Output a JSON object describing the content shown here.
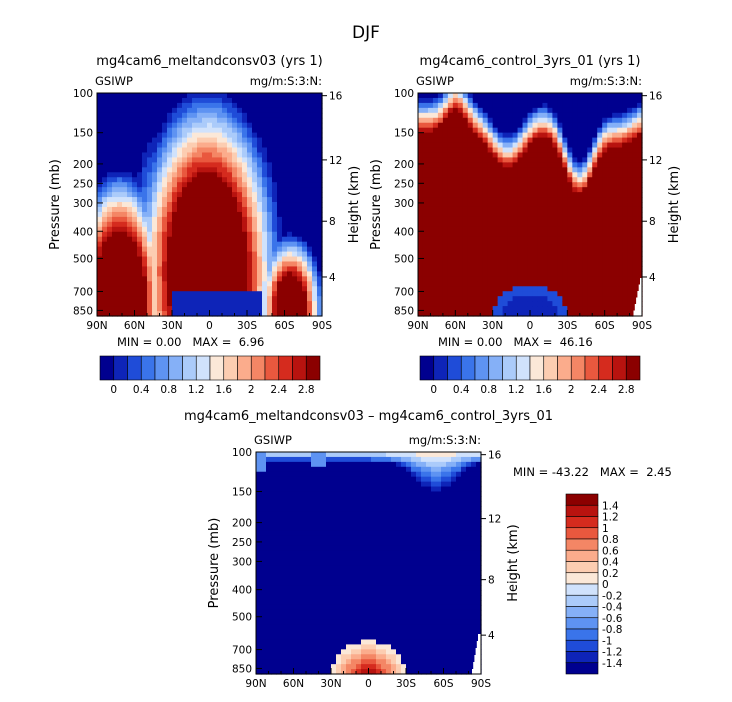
{
  "figure": {
    "title": "DJF"
  },
  "chart_data": [
    {
      "type": "heatmap",
      "title": "mg4cam6_meltandconsv03 (yrs 1)",
      "left_label": "GSIWP",
      "right_label": "mg/m:S:3:N:",
      "ylabel": "Pressure (mb)",
      "ylabel_right": "Height (km)",
      "x_ticks": [
        "90N",
        "60N",
        "30N",
        "0",
        "30S",
        "60S",
        "90S"
      ],
      "y_ticks": [
        "100",
        "150",
        "200",
        "250",
        "300",
        "400",
        "500",
        "700",
        "850"
      ],
      "height_ticks": [
        "16",
        "12",
        "8",
        "4"
      ],
      "stats": {
        "min_label": "MIN =",
        "min": "0.00",
        "max_label": "MAX =",
        "max": "6.96"
      },
      "colorbar": {
        "orientation": "horizontal",
        "labels": [
          "0",
          "0.4",
          "0.8",
          "1.2",
          "1.6",
          "2",
          "2.4",
          "2.8"
        ],
        "colors": [
          "#00008f",
          "#0e24b8",
          "#1f4cd8",
          "#3a74ea",
          "#5e93f2",
          "#85b0f7",
          "#abcbfa",
          "#d0e2fc",
          "#fbe8d8",
          "#fccdb1",
          "#fbac8c",
          "#f48665",
          "#e9583e",
          "#d52b1e",
          "#b8130f",
          "#8b0000"
        ]
      }
    },
    {
      "type": "heatmap",
      "title": "mg4cam6_control_3yrs_01 (yrs 1)",
      "left_label": "GSIWP",
      "right_label": "mg/m:S:3:N:",
      "ylabel": "Pressure (mb)",
      "ylabel_right": "Height (km)",
      "x_ticks": [
        "90N",
        "60N",
        "30N",
        "0",
        "30S",
        "60S",
        "90S"
      ],
      "y_ticks": [
        "100",
        "150",
        "200",
        "250",
        "300",
        "400",
        "500",
        "700",
        "850"
      ],
      "height_ticks": [
        "16",
        "12",
        "8",
        "4"
      ],
      "stats": {
        "min_label": "MIN =",
        "min": "0.00",
        "max_label": "MAX =",
        "max": "46.16"
      },
      "colorbar": {
        "orientation": "horizontal",
        "labels": [
          "0",
          "0.4",
          "0.8",
          "1.2",
          "1.6",
          "2",
          "2.4",
          "2.8"
        ],
        "colors": [
          "#00008f",
          "#0e24b8",
          "#1f4cd8",
          "#3a74ea",
          "#5e93f2",
          "#85b0f7",
          "#abcbfa",
          "#d0e2fc",
          "#fbe8d8",
          "#fccdb1",
          "#fbac8c",
          "#f48665",
          "#e9583e",
          "#d52b1e",
          "#b8130f",
          "#8b0000"
        ]
      }
    },
    {
      "type": "heatmap",
      "title": "mg4cam6_meltandconsv03 – mg4cam6_control_3yrs_01",
      "left_label": "GSIWP",
      "right_label": "mg/m:S:3:N:",
      "ylabel": "Pressure (mb)",
      "ylabel_right": "Height (km)",
      "x_ticks": [
        "90N",
        "60N",
        "30N",
        "0",
        "30S",
        "60S",
        "90S"
      ],
      "y_ticks": [
        "100",
        "150",
        "200",
        "250",
        "300",
        "400",
        "500",
        "700",
        "850"
      ],
      "height_ticks": [
        "16",
        "12",
        "8",
        "4"
      ],
      "stats": {
        "min_label": "MIN =",
        "min": "-43.22",
        "max_label": "MAX =",
        "max": "2.45"
      },
      "colorbar": {
        "orientation": "vertical",
        "labels": [
          "1.4",
          "1.2",
          "1",
          "0.8",
          "0.6",
          "0.4",
          "0.2",
          "0",
          "-0.2",
          "-0.4",
          "-0.6",
          "-0.8",
          "-1",
          "-1.2",
          "-1.4"
        ],
        "colors": [
          "#8b0000",
          "#b8130f",
          "#d52b1e",
          "#e9583e",
          "#f48665",
          "#fbac8c",
          "#fccdb1",
          "#fbe8d8",
          "#d0e2fc",
          "#abcbfa",
          "#85b0f7",
          "#5e93f2",
          "#3a74ea",
          "#1f4cd8",
          "#0e24b8",
          "#00008f"
        ]
      }
    }
  ]
}
